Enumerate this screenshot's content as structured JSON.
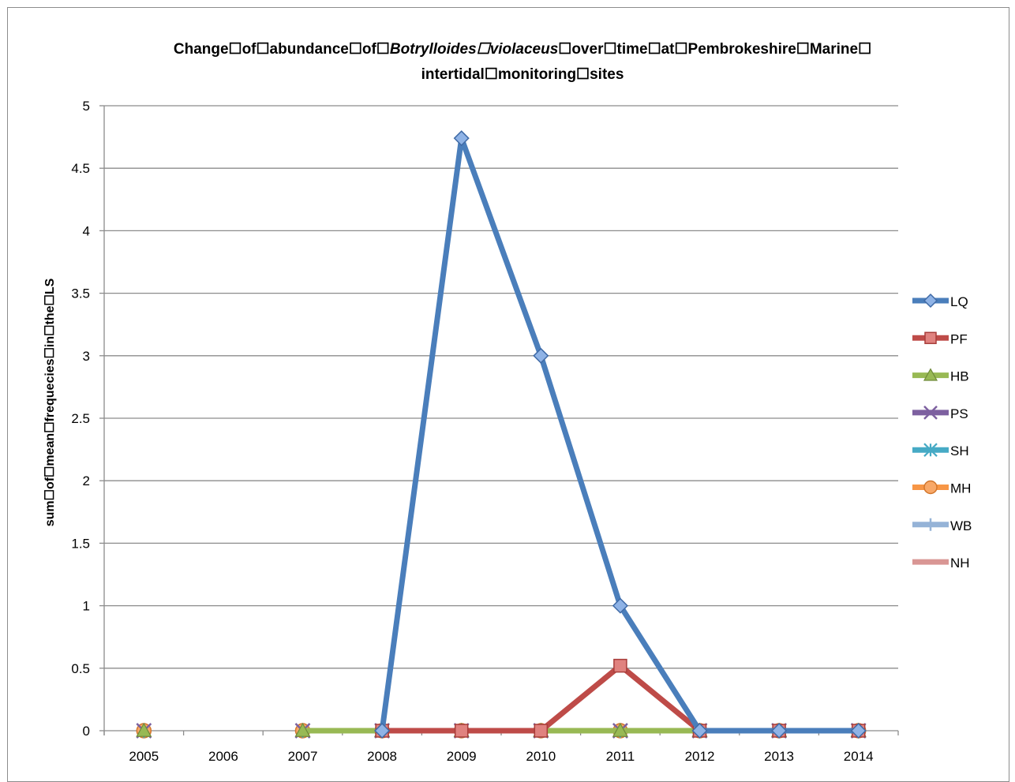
{
  "chart_data": {
    "type": "line",
    "title_lines": [
      "Change☐of☐abundance☐of☐Botrylloides☐violaceus☐over☐time☐at☐Pembrokeshire☐Marine☐",
      "intertidal☐monitoring☐sites"
    ],
    "title_italic_segment": "Botrylloides☐violaceus",
    "ylabel": "sum☐of☐mean☐frequecies☐in☐the☐LS",
    "xlabel": "",
    "categories": [
      "2005",
      "2006",
      "2007",
      "2008",
      "2009",
      "2010",
      "2011",
      "2012",
      "2013",
      "2014"
    ],
    "ylim": [
      0,
      5
    ],
    "yticks": [
      "0",
      "0.5",
      "1",
      "1.5",
      "2",
      "2.5",
      "3",
      "3.5",
      "4",
      "4.5",
      "5"
    ],
    "grid": true,
    "legend_position": "right",
    "series": [
      {
        "name": "LQ",
        "color": "#4a7ebb",
        "marker": "diamond",
        "values": [
          null,
          null,
          null,
          0,
          4.74,
          3,
          1,
          0,
          0,
          0
        ]
      },
      {
        "name": "PF",
        "color": "#be4b48",
        "marker": "square",
        "values": [
          null,
          null,
          null,
          0,
          0,
          0,
          0.52,
          0,
          0,
          0
        ]
      },
      {
        "name": "HB",
        "color": "#98b954",
        "marker": "triangle",
        "values": [
          0,
          null,
          0,
          0,
          0,
          0,
          0,
          0,
          0,
          0
        ]
      },
      {
        "name": "PS",
        "color": "#7d60a0",
        "marker": "x",
        "values": [
          0,
          null,
          0,
          0,
          0,
          0,
          0,
          0,
          0,
          0
        ]
      },
      {
        "name": "SH",
        "color": "#46aac5",
        "marker": "star",
        "values": [
          0,
          null,
          0,
          0,
          0,
          0,
          0,
          0,
          0,
          0
        ]
      },
      {
        "name": "MH",
        "color": "#f79646",
        "marker": "circle",
        "values": [
          0,
          null,
          0,
          0,
          0,
          0,
          0,
          0,
          0,
          0
        ]
      },
      {
        "name": "WB",
        "color": "#95b3d7",
        "marker": "plus",
        "values": [
          0,
          null,
          0,
          0,
          0,
          0,
          0,
          0,
          0,
          0
        ]
      },
      {
        "name": "NH",
        "color": "#d99694",
        "marker": "none",
        "values": [
          null,
          null,
          0,
          0,
          0,
          0,
          0,
          0,
          0,
          0
        ]
      }
    ]
  }
}
